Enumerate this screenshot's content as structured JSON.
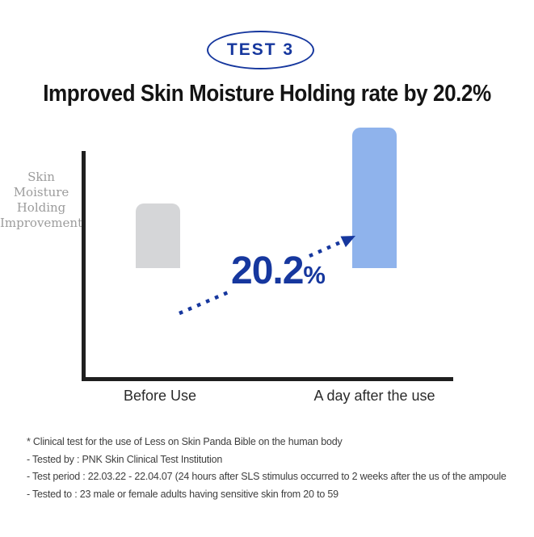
{
  "badge": {
    "label": "TEST 3"
  },
  "title": "Improved Skin Moisture Holding rate by 20.2%",
  "chart_data": {
    "type": "bar",
    "title": "Improved Skin Moisture Holding rate by 20.2%",
    "xlabel": "",
    "ylabel": "Skin Moisture Holding Improvement",
    "ylabel_lines": [
      "Skin",
      "Moisture",
      "Holding",
      "Improvement"
    ],
    "categories": [
      "Before Use",
      "A day after the use"
    ],
    "values": [
      80,
      174
    ],
    "values_note": "axis unlabeled; heights are relative pixel readings, after/before ratio ≈ 2.2",
    "annotation_value": "20.2",
    "annotation_unit": "%",
    "bar_colors": [
      "#d5d6d8",
      "#8fb3ec"
    ],
    "accent_color": "#16379e",
    "axis_color": "#1f1f1f",
    "grid": false,
    "legend": false
  },
  "footnotes": [
    "* Clinical test for the use of Less on Skin Panda Bible on the human body",
    "- Tested by : PNK Skin Clinical Test Institution",
    "- Test period : 22.03.22 - 22.04.07 (24 hours after SLS stimulus occurred to 2 weeks after the us of the ampoule",
    "- Tested to : 23 male or female adults having sensitive skin from 20 to 59"
  ]
}
